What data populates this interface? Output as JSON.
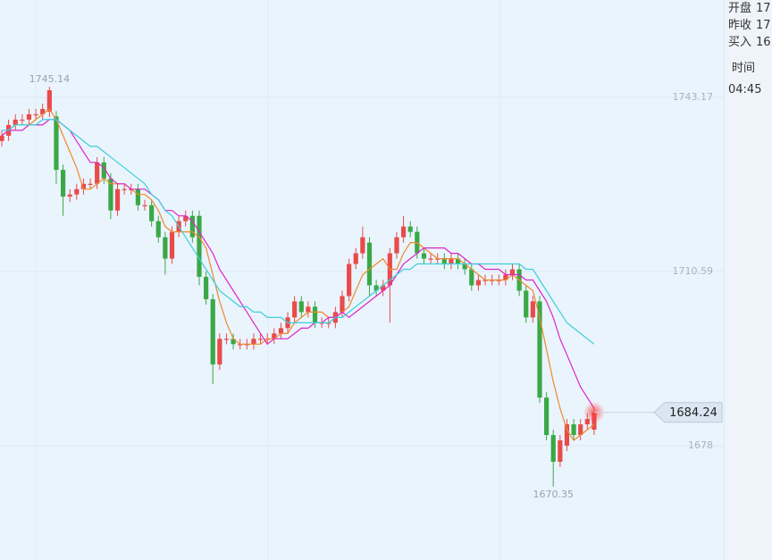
{
  "chart_data": {
    "type": "candlestick",
    "up_color": "#e84b4b",
    "down_color": "#3aa847",
    "ylim": [
      1656.62,
      1761.38
    ],
    "yticks": [
      1743.17,
      1710.59,
      1678
    ],
    "grid": true,
    "open": [
      1735,
      1736,
      1738,
      1739,
      1739,
      1740,
      1740,
      1740.5,
      1739.6,
      1729.6,
      1724.6,
      1725,
      1726,
      1727,
      1727,
      1731,
      1728,
      1722,
      1726,
      1726,
      1726,
      1723,
      1723,
      1720,
      1717,
      1713,
      1718,
      1720,
      1721,
      1721,
      1709.6,
      1705.4,
      1693.2,
      1698,
      1698,
      1697,
      1697,
      1697,
      1698,
      1698,
      1698,
      1699,
      1700,
      1702,
      1705,
      1703,
      1704,
      1701,
      1701,
      1701,
      1703,
      1706,
      1712,
      1714,
      1716,
      1708,
      1707,
      1708,
      1714,
      1717,
      1719,
      1718,
      1714,
      1713,
      1713,
      1713,
      1712,
      1713,
      1712,
      1711,
      1708,
      1709,
      1709,
      1709,
      1709,
      1710,
      1711,
      1707,
      1702,
      1705,
      1687,
      1680,
      1675,
      1678,
      1682,
      1680,
      1682,
      1681
    ],
    "high": [
      1737,
      1739,
      1740,
      1740,
      1741,
      1741,
      1742,
      1745.14,
      1740.6,
      1730.6,
      1726,
      1727,
      1728,
      1728,
      1732,
      1732,
      1729,
      1727,
      1727,
      1727,
      1727,
      1724,
      1724,
      1721,
      1718,
      1719,
      1721,
      1722,
      1722,
      1722,
      1710.6,
      1706.4,
      1699,
      1699,
      1699,
      1698,
      1698,
      1699,
      1699,
      1699,
      1700,
      1701,
      1703,
      1706,
      1706,
      1705,
      1705,
      1702,
      1702,
      1704,
      1707,
      1713,
      1715,
      1719,
      1717,
      1709,
      1709,
      1715,
      1718,
      1721,
      1720,
      1719,
      1715,
      1714,
      1714,
      1714,
      1714,
      1714,
      1713,
      1712,
      1710,
      1710,
      1710,
      1710,
      1711,
      1712,
      1712,
      1708,
      1706,
      1706,
      1688,
      1681,
      1680,
      1683,
      1683,
      1683,
      1684,
      1685.2
    ],
    "low": [
      1734,
      1735,
      1737,
      1738,
      1738,
      1739,
      1739,
      1739.5,
      1727,
      1721,
      1723.6,
      1724,
      1725,
      1726,
      1726,
      1727,
      1720.4,
      1721,
      1725,
      1725,
      1722,
      1722,
      1719,
      1716,
      1710,
      1712,
      1717,
      1719,
      1716,
      1708,
      1704.4,
      1689.5,
      1692.2,
      1697,
      1696,
      1696,
      1696,
      1696,
      1697,
      1697,
      1697,
      1698,
      1699,
      1701,
      1702,
      1702,
      1700,
      1700,
      1700,
      1700,
      1702,
      1705,
      1711,
      1713,
      1706,
      1706,
      1706,
      1701,
      1713,
      1716,
      1717,
      1713,
      1712,
      1712,
      1712,
      1711,
      1711,
      1711,
      1710,
      1707,
      1707,
      1708,
      1708,
      1708,
      1708,
      1709,
      1706,
      1701,
      1701,
      1686,
      1679,
      1670.35,
      1674,
      1677,
      1679,
      1679,
      1681,
      1680
    ],
    "close": [
      1736,
      1738,
      1739,
      1739,
      1740,
      1740,
      1741,
      1744.5,
      1729.6,
      1724.6,
      1725,
      1726,
      1727,
      1727,
      1731,
      1728,
      1722,
      1726,
      1726,
      1726,
      1723,
      1723,
      1720,
      1717,
      1713,
      1718,
      1720,
      1721,
      1717,
      1709.6,
      1705.4,
      1693.2,
      1698,
      1698,
      1697,
      1697,
      1697,
      1698,
      1698,
      1698,
      1699,
      1700,
      1702,
      1705,
      1703,
      1704,
      1701,
      1701,
      1701,
      1703,
      1706,
      1712,
      1714,
      1717,
      1708,
      1707,
      1708,
      1714,
      1717,
      1719,
      1718,
      1714,
      1713,
      1713,
      1713,
      1712,
      1713,
      1712,
      1711,
      1708,
      1709,
      1709,
      1709,
      1709,
      1710,
      1711,
      1707,
      1702,
      1705,
      1687,
      1680,
      1675,
      1679,
      1682,
      1680,
      1682,
      1683,
      1684.24
    ],
    "lines": [
      {
        "color": "#f0892a",
        "values": [
          1736,
          1737,
          1738,
          1738,
          1738,
          1739,
          1740,
          1741,
          1739,
          1736,
          1733,
          1730,
          1726,
          1726,
          1727,
          1728,
          1727,
          1727,
          1727,
          1726,
          1725,
          1725,
          1724,
          1722,
          1719,
          1718,
          1718,
          1718,
          1718,
          1717,
          1715,
          1710,
          1705,
          1701,
          1698,
          1697,
          1697,
          1697,
          1697,
          1698,
          1698,
          1699,
          1699,
          1701,
          1702,
          1703,
          1703,
          1703,
          1702,
          1702,
          1703,
          1704,
          1707,
          1710,
          1711,
          1712,
          1713,
          1711,
          1711,
          1714,
          1716,
          1716,
          1715,
          1714,
          1713,
          1713,
          1713,
          1713,
          1712,
          1711,
          1710,
          1709,
          1709,
          1709,
          1709,
          1710,
          1709,
          1708,
          1707,
          1702,
          1696,
          1690,
          1685,
          1681,
          1679,
          1680,
          1681,
          1682
        ]
      },
      {
        "color": "#e024c8",
        "values": [
          1736,
          1737,
          1737,
          1737,
          1738,
          1738,
          1738,
          1739,
          1739,
          1738,
          1737,
          1735,
          1733,
          1731,
          1731,
          1730,
          1728,
          1727,
          1727,
          1726,
          1726,
          1726,
          1725,
          1724,
          1722,
          1722,
          1721,
          1721,
          1720,
          1718,
          1716,
          1714,
          1711,
          1709,
          1707,
          1705,
          1703,
          1701,
          1699,
          1697,
          1698,
          1698,
          1698,
          1699,
          1700,
          1700,
          1701,
          1701,
          1702,
          1702,
          1703,
          1702,
          1703,
          1704,
          1705,
          1706,
          1707,
          1708,
          1710,
          1712,
          1713,
          1714,
          1715,
          1715,
          1715,
          1715,
          1714,
          1714,
          1713,
          1712,
          1712,
          1711,
          1711,
          1711,
          1710,
          1710,
          1710,
          1709,
          1709,
          1707,
          1705,
          1702,
          1698,
          1695,
          1692,
          1689,
          1687,
          1685
        ]
      },
      {
        "color": "#3ccfd9",
        "values": [
          1737,
          1737,
          1738,
          1738,
          1738,
          1738,
          1739,
          1739,
          1739,
          1738,
          1737,
          1736,
          1735,
          1734,
          1734,
          1733,
          1732,
          1731,
          1730,
          1729,
          1728,
          1727,
          1725,
          1724,
          1722,
          1721,
          1719,
          1717,
          1715,
          1713,
          1711,
          1709,
          1707,
          1706,
          1705,
          1704,
          1704,
          1703,
          1703,
          1702,
          1702,
          1702,
          1701,
          1701,
          1701,
          1701,
          1701,
          1701,
          1701,
          1702,
          1702,
          1703,
          1704,
          1705,
          1706,
          1707,
          1708,
          1709,
          1710,
          1711,
          1711,
          1712,
          1712,
          1712,
          1712,
          1712,
          1712,
          1712,
          1712,
          1712,
          1712,
          1712,
          1712,
          1712,
          1712,
          1712,
          1712,
          1711,
          1711,
          1709,
          1707,
          1705,
          1703,
          1701,
          1700,
          1699,
          1698,
          1697
        ]
      }
    ]
  },
  "info_panel": {
    "rows": [
      {
        "label": "开盘",
        "value": "17"
      },
      {
        "label": "昨收",
        "value": "17"
      },
      {
        "label": "买入",
        "value": "16"
      }
    ],
    "time_label": "时间",
    "time": "04:45"
  }
}
